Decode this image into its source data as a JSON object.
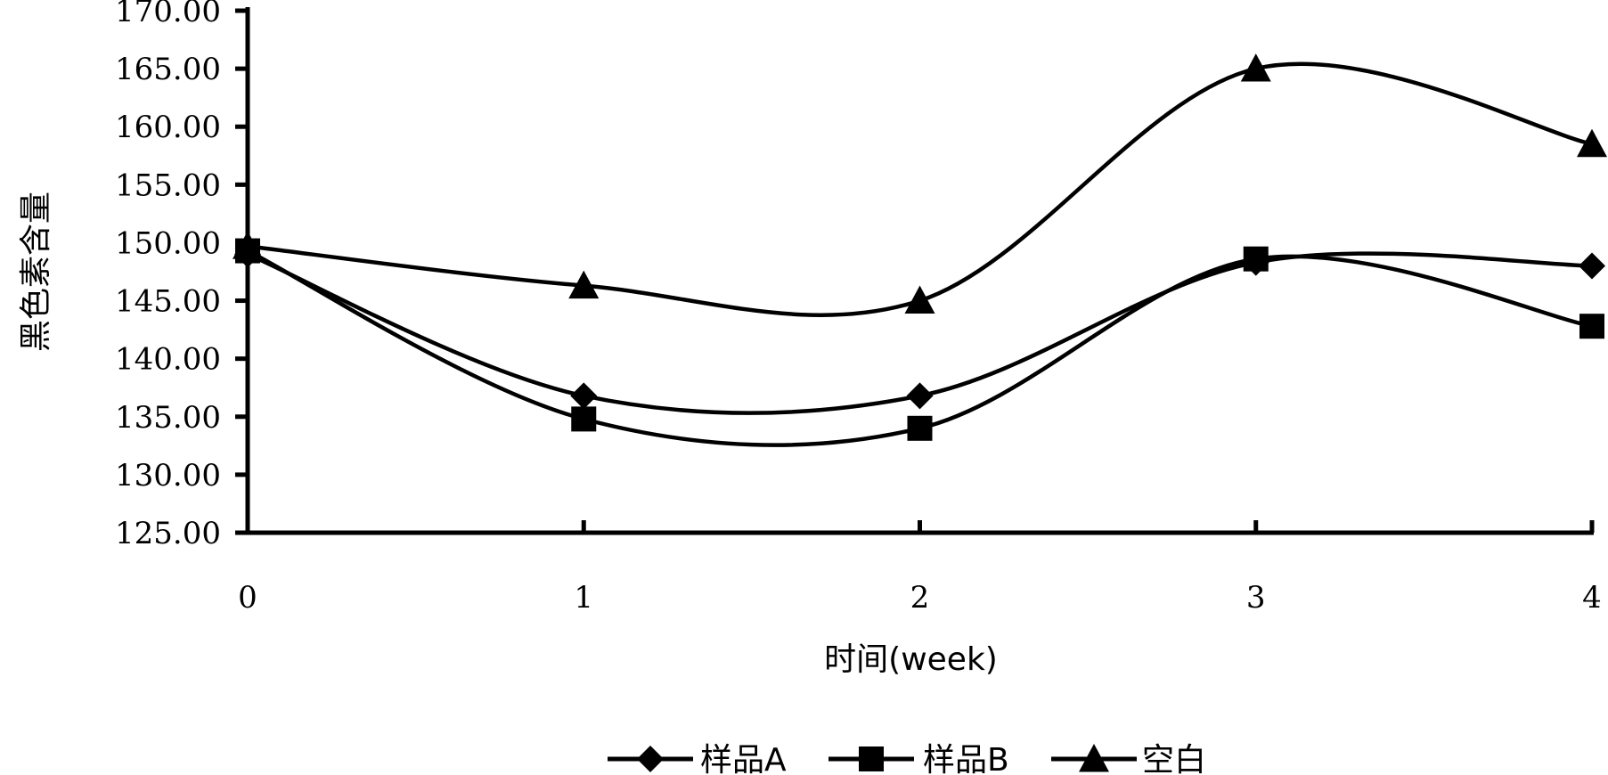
{
  "chart_data": {
    "type": "line",
    "x": [
      0,
      1,
      2,
      3,
      4
    ],
    "xticks": [
      "0",
      "1",
      "2",
      "3",
      "4"
    ],
    "xlabel": "时间(week)",
    "ylabel": "黑色素含量",
    "ylim": [
      125,
      170
    ],
    "yticks": [
      "125.00",
      "130.00",
      "135.00",
      "140.00",
      "145.00",
      "150.00",
      "155.00",
      "160.00",
      "165.00",
      "170.00"
    ],
    "grid": false,
    "legend": "bottom",
    "smooth": true,
    "series": [
      {
        "name": "样品A",
        "marker": "diamond",
        "values": [
          149.0,
          136.8,
          136.8,
          148.3,
          148.0
        ]
      },
      {
        "name": "样品B",
        "marker": "square",
        "values": [
          149.3,
          134.8,
          134.0,
          148.6,
          142.8
        ]
      },
      {
        "name": "空白",
        "marker": "triangle",
        "values": [
          149.7,
          146.3,
          145.0,
          165.0,
          158.5
        ]
      }
    ],
    "colors": {
      "line": "#000000",
      "marker": "#000000",
      "background": "#ffffff"
    }
  }
}
